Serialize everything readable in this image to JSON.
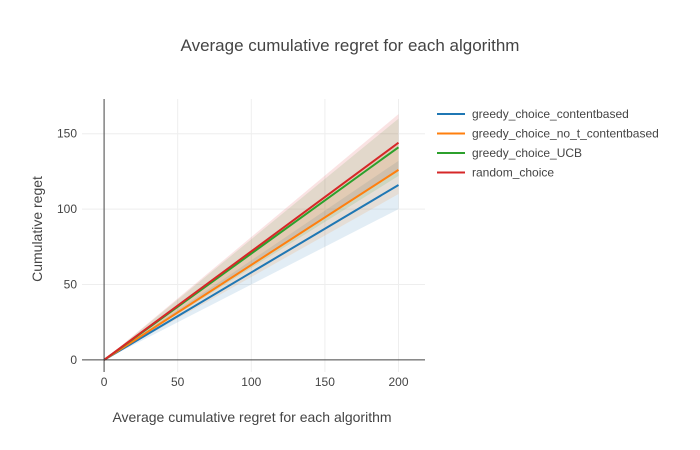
{
  "chart_data": {
    "type": "line",
    "title": "Average cumulative regret for each algorithm",
    "xlabel": "Average cumulative regret for each algorithm",
    "ylabel": "Cumulative reget",
    "xlim": [
      -15,
      218
    ],
    "ylim": [
      -8,
      173
    ],
    "xticks": [
      0,
      50,
      100,
      150,
      200
    ],
    "yticks": [
      0,
      50,
      100,
      150
    ],
    "grid": true,
    "legend_position": "top-right",
    "x": [
      0,
      200
    ],
    "series": [
      {
        "name": "greedy_choice_contentbased",
        "color": "#1f77b4",
        "values": [
          0,
          116
        ],
        "band_lower": [
          0,
          100
        ],
        "band_upper": [
          0,
          132
        ]
      },
      {
        "name": "greedy_choice_no_t_contentbased",
        "color": "#ff7f0e",
        "values": [
          0,
          126
        ],
        "band_lower": [
          0,
          110
        ],
        "band_upper": [
          0,
          143
        ]
      },
      {
        "name": "greedy_choice_UCB",
        "color": "#2ca02c",
        "values": [
          0,
          141
        ],
        "band_lower": [
          0,
          122
        ],
        "band_upper": [
          0,
          160
        ]
      },
      {
        "name": "random_choice",
        "color": "#d62728",
        "values": [
          0,
          144
        ],
        "band_lower": [
          0,
          126
        ],
        "band_upper": [
          0,
          163
        ]
      }
    ]
  }
}
